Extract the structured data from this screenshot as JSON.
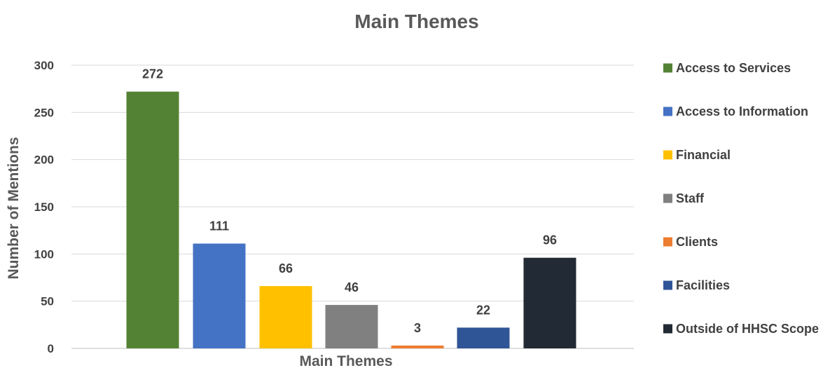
{
  "chart_data": {
    "type": "bar",
    "title": "Main Themes",
    "xlabel": "Main Themes",
    "ylabel": "Number of Mentions",
    "ylim": [
      0,
      300
    ],
    "yticks": [
      0,
      50,
      100,
      150,
      200,
      250,
      300
    ],
    "grid": true,
    "legend_position": "right",
    "series": [
      {
        "name": "Access to Services",
        "value": 272,
        "color": "#548235"
      },
      {
        "name": "Access to Information",
        "value": 111,
        "color": "#4472c4"
      },
      {
        "name": "Financial",
        "value": 66,
        "color": "#ffc000"
      },
      {
        "name": "Staff",
        "value": 46,
        "color": "#808080"
      },
      {
        "name": "Clients",
        "value": 3,
        "color": "#ed7d31"
      },
      {
        "name": "Facilities",
        "value": 22,
        "color": "#2f5597"
      },
      {
        "name": "Outside of HHSC Scope",
        "value": 96,
        "color": "#222a35"
      }
    ]
  }
}
